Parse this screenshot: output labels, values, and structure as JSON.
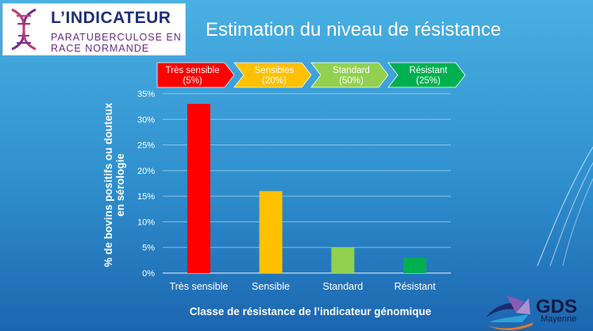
{
  "header": {
    "logo_title": "L’INDICATEUR",
    "logo_line1": "PARATUBERCULOSE EN",
    "logo_line2": "RACE NORMANDE",
    "slide_title": "Estimation du niveau de résistance"
  },
  "classes": [
    {
      "name": "Très sensible",
      "pct": "(5%)",
      "color": "#ff0000"
    },
    {
      "name": "Sensibles",
      "pct": "(20%)",
      "color": "#ffc000"
    },
    {
      "name": "Standard",
      "pct": "(50%)",
      "color": "#92d050"
    },
    {
      "name": "Résistant",
      "pct": "(25%)",
      "color": "#00b050"
    }
  ],
  "chart_data": {
    "type": "bar",
    "categories": [
      "Très sensible",
      "Sensible",
      "Standard",
      "Résistant"
    ],
    "values": [
      33,
      16,
      5,
      3
    ],
    "colors": [
      "#ff0000",
      "#ffc000",
      "#92d050",
      "#00b050"
    ],
    "title": "",
    "xlabel": "Classe de résistance de l’indicateur génomique",
    "ylabel_line1": "% de bovins positifs ou douteux",
    "ylabel_line2": "en sérologie",
    "ylim": [
      0,
      35
    ],
    "yticks": [
      "0%",
      "5%",
      "10%",
      "15%",
      "20%",
      "25%",
      "30%",
      "35%"
    ],
    "grid": true
  },
  "footer": {
    "gds_name": "GDS",
    "gds_sub": "Mayenne"
  }
}
